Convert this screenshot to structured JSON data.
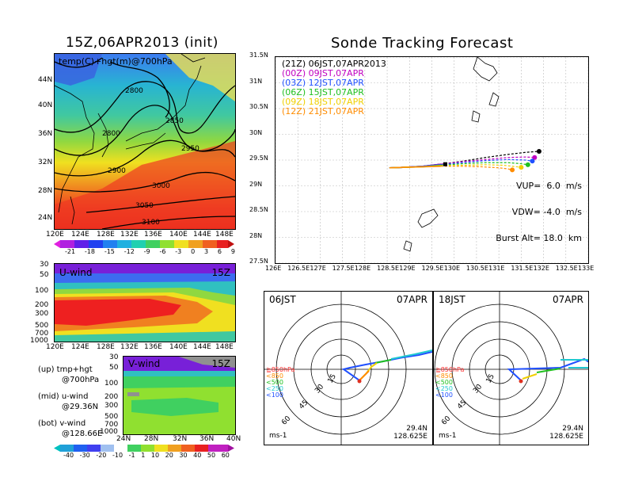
{
  "left_title": "15Z,06APR2013 (init)",
  "right_title": "Sonde Tracking Forecast",
  "map_panel": {
    "label": "temp(C)+hgt(m)@700hPa",
    "lat_labels": [
      "44N",
      "40N",
      "36N",
      "32N",
      "28N",
      "24N"
    ],
    "lon_labels": [
      "120E",
      "124E",
      "128E",
      "132E",
      "136E",
      "140E",
      "144E",
      "148E"
    ],
    "contour_labels": [
      "2800",
      "2850",
      "2800",
      "2950",
      "2900",
      "3000",
      "3050",
      "3100"
    ],
    "colorbar_labels": [
      "-21",
      "-18",
      "-15",
      "-12",
      "-9",
      "-6",
      "-3",
      "0",
      "3",
      "6",
      "9"
    ]
  },
  "uwind_panel": {
    "label": "U-wind",
    "time": "15Z",
    "p_labels": [
      "30",
      "50",
      "100",
      "200",
      "300",
      "500",
      "700",
      "1000"
    ],
    "lon_labels": [
      "120E",
      "124E",
      "128E",
      "132E",
      "136E",
      "140E",
      "144E",
      "148E"
    ]
  },
  "vwind_panel": {
    "label": "V-wind",
    "time": "15Z",
    "p_labels": [
      "30",
      "50",
      "100",
      "200",
      "300",
      "500",
      "700",
      "1000"
    ],
    "lat_labels": [
      "24N",
      "28N",
      "32N",
      "36N",
      "40N"
    ]
  },
  "legend_text": {
    "up1": "(up) tmp+hgt",
    "up2": "@700hPa",
    "mid1": "(mid) u-wind",
    "mid2": "@29.36N",
    "bot1": "(bot) v-wind",
    "bot2": "@128.66E"
  },
  "wind_colorbar_labels": [
    "-40",
    "-30",
    "-20",
    "-10",
    "-1",
    "1",
    "10",
    "20",
    "30",
    "40",
    "50",
    "60"
  ],
  "track_panel": {
    "y_labels": [
      "31.5N",
      "31N",
      "30.5N",
      "30N",
      "29.5N",
      "29N",
      "28.5N",
      "28N",
      "27.5N"
    ],
    "x_labels": [
      "126E",
      "126.5E",
      "127E",
      "127.5E",
      "128E",
      "128.5E",
      "129E",
      "129.5E",
      "130E",
      "130.5E",
      "131E",
      "131.5E",
      "132E",
      "132.5E",
      "133E"
    ],
    "legend": [
      {
        "z": "(21Z)",
        "t": "06JST,07APR2013",
        "color": "#000000"
      },
      {
        "z": "(00Z)",
        "t": "09JST,07APR",
        "color": "#c000c0"
      },
      {
        "z": "(03Z)",
        "t": "12JST,07APR",
        "color": "#2050ff"
      },
      {
        "z": "(06Z)",
        "t": "15JST,07APR",
        "color": "#20c020"
      },
      {
        "z": "(09Z)",
        "t": "18JST,07APR",
        "color": "#f0d000"
      },
      {
        "z": "(12Z)",
        "t": "21JST,07APR",
        "color": "#ff8c00"
      }
    ],
    "params": {
      "vup": "VUP=  6.0  m/s",
      "vdw": "VDW= -4.0  m/s",
      "burst": "Burst Alt= 18.0  km"
    }
  },
  "chart_data": [
    {
      "type": "line",
      "title": "Sonde Tracking Forecast",
      "xlim": [
        126,
        133
      ],
      "ylim": [
        27.5,
        31.5
      ],
      "launch": {
        "lon": 129.8,
        "lat": 29.42
      },
      "series": [
        {
          "name": "(21Z) 06JST,07APR2013",
          "color": "#000000",
          "x": [
            128.55,
            128.9,
            129.3,
            129.7,
            130.2,
            130.7,
            131.2,
            131.6,
            131.9
          ],
          "y": [
            29.35,
            29.36,
            29.38,
            29.42,
            29.48,
            29.55,
            29.61,
            29.65,
            29.67
          ]
        },
        {
          "name": "(00Z) 09JST,07APR",
          "color": "#c000c0",
          "x": [
            128.55,
            128.9,
            129.3,
            129.7,
            130.2,
            130.7,
            131.2,
            131.6,
            131.8
          ],
          "y": [
            29.35,
            29.36,
            29.38,
            29.42,
            29.47,
            29.51,
            29.55,
            29.56,
            29.55
          ]
        },
        {
          "name": "(03Z) 12JST,07APR",
          "color": "#2050ff",
          "x": [
            128.55,
            128.9,
            129.3,
            129.7,
            130.2,
            130.7,
            131.2,
            131.6,
            131.75
          ],
          "y": [
            29.35,
            29.36,
            29.38,
            29.41,
            29.45,
            29.49,
            29.51,
            29.5,
            29.48
          ]
        },
        {
          "name": "(06Z) 15JST,07APR",
          "color": "#20c020",
          "x": [
            128.55,
            128.9,
            129.3,
            129.7,
            130.2,
            130.7,
            131.2,
            131.5,
            131.65
          ],
          "y": [
            29.35,
            29.36,
            29.37,
            29.4,
            29.43,
            29.45,
            29.45,
            29.43,
            29.41
          ]
        },
        {
          "name": "(09Z) 18JST,07APR",
          "color": "#f0d000",
          "x": [
            128.55,
            128.9,
            129.3,
            129.7,
            130.2,
            130.7,
            131.1,
            131.4,
            131.5
          ],
          "y": [
            29.35,
            29.36,
            29.37,
            29.39,
            29.4,
            29.41,
            29.4,
            29.37,
            29.36
          ]
        },
        {
          "name": "(12Z) 21JST,07APR",
          "color": "#ff8c00",
          "x": [
            128.55,
            128.9,
            129.3,
            129.7,
            130.2,
            130.6,
            131.0,
            131.2,
            131.3
          ],
          "y": [
            29.35,
            29.36,
            29.37,
            29.38,
            29.38,
            29.37,
            29.35,
            29.33,
            29.31
          ]
        }
      ]
    }
  ],
  "polar_left": {
    "time": "06JST",
    "date": "07APR",
    "rings": [
      "15",
      "30",
      "45",
      "60"
    ],
    "lat": "29.4N",
    "lon": "128.625E",
    "unit": "ms-1",
    "levels": [
      "≧850hPa",
      "<850",
      "<500",
      "<250",
      "<100"
    ]
  },
  "polar_right": {
    "time": "18JST",
    "date": "07APR",
    "rings": [
      "15",
      "30",
      "45",
      "60"
    ],
    "lat": "29.4N",
    "lon": "128.625E",
    "unit": "ms-1",
    "levels": [
      "≧850hPa",
      "<850",
      "<500",
      "<250",
      "<100"
    ]
  }
}
